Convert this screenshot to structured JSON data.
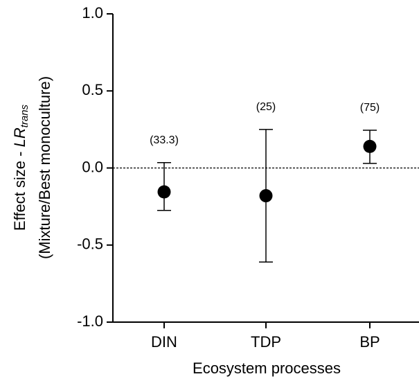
{
  "chart_data": {
    "type": "errorpoint",
    "categories": [
      "DIN",
      "TDP",
      "BP"
    ],
    "values": [
      -0.155,
      -0.18,
      0.14
    ],
    "lower": [
      -0.275,
      -0.61,
      0.03
    ],
    "upper": [
      0.035,
      0.25,
      0.245
    ],
    "annotations": [
      "(33.3)",
      "(25)",
      "(75)"
    ],
    "color": "#000000",
    "ylim": [
      -1.0,
      1.0
    ],
    "yticks": [
      {
        "value": -1.0,
        "label": "-1.0"
      },
      -0.5,
      {
        "value": 0.0,
        "label": "0.0"
      },
      0.5,
      {
        "value": 1.0,
        "label": "1.0"
      }
    ],
    "reference_line": 0,
    "xlabel": "Ecosystem processes",
    "ylabel": {
      "prefix": "Effect size - ",
      "symbol": "LR",
      "subscript": "trans",
      "line2": "(Mixture/Best monoculture)"
    }
  }
}
